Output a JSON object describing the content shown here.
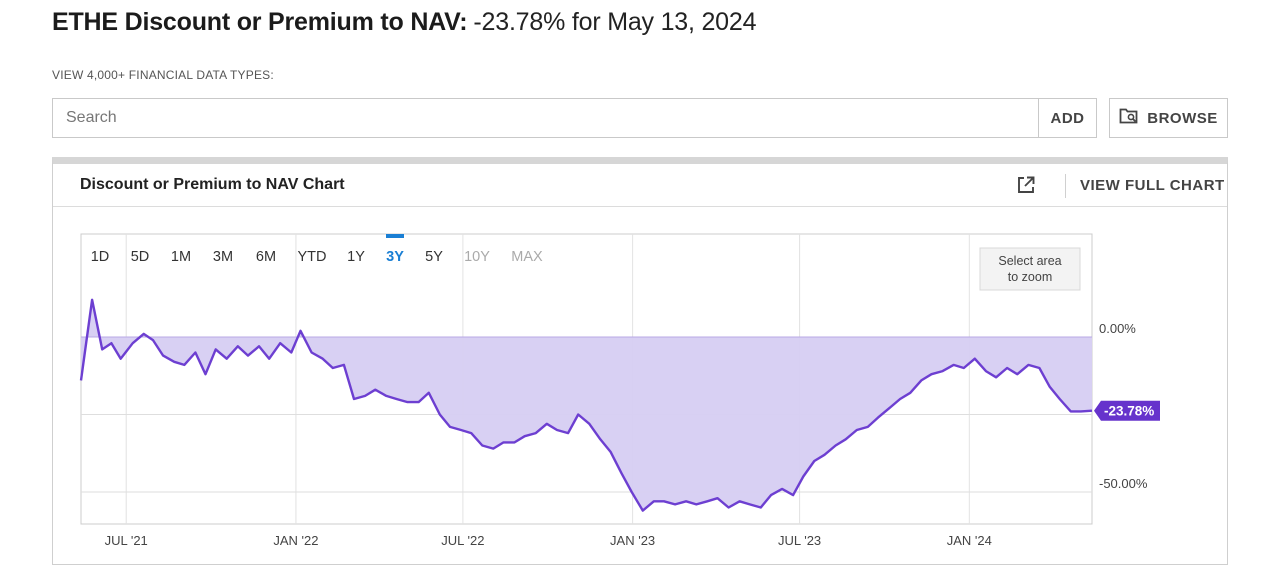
{
  "header": {
    "title_bold": "ETHE Discount or Premium to NAV:",
    "title_value": "-23.78% for May 13, 2024"
  },
  "subhead": "VIEW 4,000+ FINANCIAL DATA TYPES:",
  "search": {
    "placeholder": "Search",
    "value": "",
    "add_label": "ADD",
    "browse_label": "BROWSE"
  },
  "panel": {
    "title": "Discount or Premium to NAV Chart",
    "full_chart_label": "VIEW FULL CHART"
  },
  "range_buttons": {
    "items": [
      "1D",
      "5D",
      "1M",
      "3M",
      "6M",
      "YTD",
      "1Y",
      "3Y",
      "5Y",
      "10Y",
      "MAX"
    ],
    "active": "3Y",
    "disabled": [
      "10Y",
      "MAX"
    ]
  },
  "zoom_hint": [
    "Select area",
    "to zoom"
  ],
  "colors": {
    "line": "#6d3fd1",
    "fill": "#d6cdf2",
    "active": "#1a7fd4",
    "label_bg": "#6633cc"
  },
  "chart_data": {
    "type": "area",
    "title": "",
    "xlabel": "",
    "ylabel": "",
    "x_ticks": [
      {
        "label": "JUL '21",
        "date": "2021-07-01"
      },
      {
        "label": "JAN '22",
        "date": "2022-01-01"
      },
      {
        "label": "JUL '22",
        "date": "2022-07-01"
      },
      {
        "label": "JAN '23",
        "date": "2023-01-01"
      },
      {
        "label": "JUL '23",
        "date": "2023-07-01"
      },
      {
        "label": "JAN '24",
        "date": "2024-01-01"
      }
    ],
    "y_ticks": [
      {
        "label": "0.00%",
        "value": 0
      },
      {
        "label": "-50.00%",
        "value": -50
      }
    ],
    "xlim": [
      "2021-05-13",
      "2024-05-13"
    ],
    "ylim": [
      -60,
      10
    ],
    "grid": true,
    "last_value_label": "-23.78%",
    "series": [
      {
        "name": "",
        "points": [
          [
            "2021-05-13",
            -14
          ],
          [
            "2021-05-25",
            12
          ],
          [
            "2021-06-05",
            -4
          ],
          [
            "2021-06-15",
            -2
          ],
          [
            "2021-06-25",
            -7
          ],
          [
            "2021-07-08",
            -2
          ],
          [
            "2021-07-20",
            1
          ],
          [
            "2021-07-30",
            -1
          ],
          [
            "2021-08-10",
            -6
          ],
          [
            "2021-08-22",
            -8
          ],
          [
            "2021-09-02",
            -9
          ],
          [
            "2021-09-14",
            -5
          ],
          [
            "2021-09-25",
            -12
          ],
          [
            "2021-10-06",
            -4
          ],
          [
            "2021-10-18",
            -7
          ],
          [
            "2021-10-30",
            -3
          ],
          [
            "2021-11-10",
            -6
          ],
          [
            "2021-11-22",
            -3
          ],
          [
            "2021-12-03",
            -7
          ],
          [
            "2021-12-15",
            -2
          ],
          [
            "2021-12-27",
            -5
          ],
          [
            "2022-01-06",
            2
          ],
          [
            "2022-01-18",
            -5
          ],
          [
            "2022-01-30",
            -7
          ],
          [
            "2022-02-10",
            -10
          ],
          [
            "2022-02-22",
            -9
          ],
          [
            "2022-03-05",
            -20
          ],
          [
            "2022-03-17",
            -19
          ],
          [
            "2022-03-28",
            -17
          ],
          [
            "2022-04-09",
            -19
          ],
          [
            "2022-04-20",
            -20
          ],
          [
            "2022-05-02",
            -21
          ],
          [
            "2022-05-14",
            -21
          ],
          [
            "2022-05-25",
            -18
          ],
          [
            "2022-06-06",
            -25
          ],
          [
            "2022-06-17",
            -29
          ],
          [
            "2022-06-29",
            -30
          ],
          [
            "2022-07-10",
            -31
          ],
          [
            "2022-07-22",
            -35
          ],
          [
            "2022-08-03",
            -36
          ],
          [
            "2022-08-14",
            -34
          ],
          [
            "2022-08-26",
            -34
          ],
          [
            "2022-09-06",
            -32
          ],
          [
            "2022-09-18",
            -31
          ],
          [
            "2022-09-30",
            -28
          ],
          [
            "2022-10-11",
            -30
          ],
          [
            "2022-10-23",
            -31
          ],
          [
            "2022-11-03",
            -25
          ],
          [
            "2022-11-15",
            -28
          ],
          [
            "2022-11-27",
            -33
          ],
          [
            "2022-12-08",
            -37
          ],
          [
            "2022-12-20",
            -44
          ],
          [
            "2022-12-31",
            -50
          ],
          [
            "2023-01-12",
            -56
          ],
          [
            "2023-01-24",
            -53
          ],
          [
            "2023-02-04",
            -53
          ],
          [
            "2023-02-16",
            -54
          ],
          [
            "2023-02-28",
            -53
          ],
          [
            "2023-03-11",
            -54
          ],
          [
            "2023-03-23",
            -53
          ],
          [
            "2023-04-03",
            -52
          ],
          [
            "2023-04-15",
            -55
          ],
          [
            "2023-04-27",
            -53
          ],
          [
            "2023-05-08",
            -54
          ],
          [
            "2023-05-20",
            -55
          ],
          [
            "2023-05-31",
            -51
          ],
          [
            "2023-06-12",
            -49
          ],
          [
            "2023-06-24",
            -51
          ],
          [
            "2023-07-05",
            -45
          ],
          [
            "2023-07-17",
            -40
          ],
          [
            "2023-07-28",
            -38
          ],
          [
            "2023-08-09",
            -35
          ],
          [
            "2023-08-20",
            -33
          ],
          [
            "2023-09-01",
            -30
          ],
          [
            "2023-09-13",
            -29
          ],
          [
            "2023-09-24",
            -26
          ],
          [
            "2023-10-06",
            -23
          ],
          [
            "2023-10-18",
            -20
          ],
          [
            "2023-10-29",
            -18
          ],
          [
            "2023-11-10",
            -14
          ],
          [
            "2023-11-21",
            -12
          ],
          [
            "2023-12-03",
            -11
          ],
          [
            "2023-12-15",
            -9
          ],
          [
            "2023-12-26",
            -10
          ],
          [
            "2024-01-07",
            -7
          ],
          [
            "2024-01-19",
            -11
          ],
          [
            "2024-01-30",
            -13
          ],
          [
            "2024-02-11",
            -10
          ],
          [
            "2024-02-22",
            -12
          ],
          [
            "2024-03-05",
            -9
          ],
          [
            "2024-03-17",
            -10
          ],
          [
            "2024-03-28",
            -16
          ],
          [
            "2024-04-08",
            -20
          ],
          [
            "2024-04-20",
            -24
          ],
          [
            "2024-05-01",
            -24
          ],
          [
            "2024-05-13",
            -23.78
          ]
        ]
      }
    ]
  }
}
